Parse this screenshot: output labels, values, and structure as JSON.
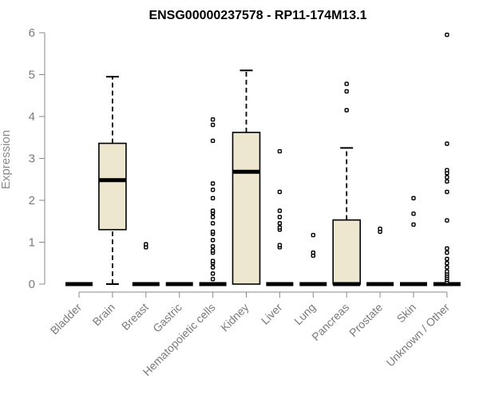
{
  "chart_data": {
    "type": "boxplot",
    "title": "ENSG00000237578 - RP11-174M13.1",
    "ylabel": "Expression",
    "xlabel": "",
    "ylim": [
      0,
      6
    ],
    "yticks": [
      0,
      1,
      2,
      3,
      4,
      5,
      6
    ],
    "grid": false,
    "box_color": "#ede7d0",
    "categories": [
      "Bladder",
      "Brain",
      "Breast",
      "Gastric",
      "Hematopoietic cells",
      "Kidney",
      "Liver",
      "Lung",
      "Pancreas",
      "Prostate",
      "Skin",
      "Unknown / Other"
    ],
    "boxes": [
      {
        "min": 0,
        "q1": 0,
        "median": 0,
        "q3": 0,
        "max": 0,
        "outliers": []
      },
      {
        "min": 0,
        "q1": 1.3,
        "median": 2.48,
        "q3": 3.36,
        "max": 4.95,
        "outliers": []
      },
      {
        "min": 0,
        "q1": 0,
        "median": 0,
        "q3": 0,
        "max": 0,
        "outliers": [
          0.88,
          0.95
        ]
      },
      {
        "min": 0,
        "q1": 0,
        "median": 0,
        "q3": 0,
        "max": 0,
        "outliers": []
      },
      {
        "min": 0,
        "q1": 0,
        "median": 0,
        "q3": 0,
        "max": 0,
        "outliers": [
          0.12,
          0.25,
          0.4,
          0.5,
          0.55,
          0.75,
          0.8,
          0.9,
          1.05,
          1.2,
          1.25,
          1.45,
          1.6,
          1.7,
          1.75,
          2.05,
          2.25,
          2.4,
          3.42,
          3.8,
          3.93
        ]
      },
      {
        "min": 0,
        "q1": 0,
        "median": 2.68,
        "q3": 3.62,
        "max": 5.1,
        "outliers": []
      },
      {
        "min": 0,
        "q1": 0,
        "median": 0,
        "q3": 0,
        "max": 0,
        "outliers": [
          0.88,
          0.93,
          1.3,
          1.35,
          1.45,
          1.6,
          1.75,
          2.2,
          3.17
        ]
      },
      {
        "min": 0,
        "q1": 0,
        "median": 0,
        "q3": 0,
        "max": 0,
        "outliers": [
          0.68,
          0.75,
          1.17
        ]
      },
      {
        "min": 0,
        "q1": 0,
        "median": 0,
        "q3": 1.53,
        "max": 3.25,
        "outliers": [
          4.15,
          4.6,
          4.78
        ]
      },
      {
        "min": 0,
        "q1": 0,
        "median": 0,
        "q3": 0,
        "max": 0,
        "outliers": [
          1.25,
          1.32
        ]
      },
      {
        "min": 0,
        "q1": 0,
        "median": 0,
        "q3": 0,
        "max": 0,
        "outliers": [
          1.42,
          1.68,
          2.05
        ]
      },
      {
        "min": 0,
        "q1": 0,
        "median": 0,
        "q3": 0,
        "max": 0,
        "outliers": [
          0.05,
          0.1,
          0.15,
          0.2,
          0.25,
          0.3,
          0.4,
          0.5,
          0.6,
          0.75,
          0.85,
          1.52,
          2.2,
          2.45,
          2.55,
          2.65,
          2.72,
          3.35,
          5.95
        ]
      }
    ]
  }
}
